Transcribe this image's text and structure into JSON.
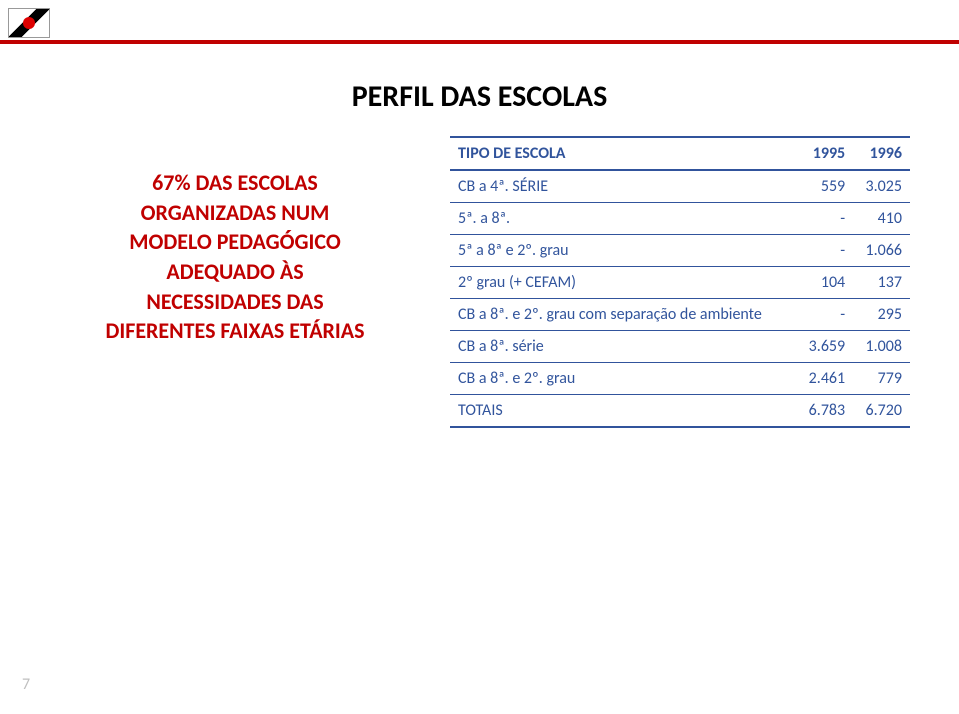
{
  "header": {
    "logo_name": "state-flag-logo"
  },
  "title": "PERFIL DAS ESCOLAS",
  "left_text": {
    "l1": "67% DAS ESCOLAS",
    "l2": "ORGANIZADAS NUM",
    "l3": "MODELO PEDAGÓGICO",
    "l4": "ADEQUADO ÀS",
    "l5": "NECESSIDADES DAS",
    "l6": "DIFERENTES FAIXAS ETÁRIAS"
  },
  "table": {
    "header": {
      "c0": "TIPO DE ESCOLA",
      "c1": "1995",
      "c2": "1996"
    },
    "rows": [
      {
        "c0": "CB a 4ª. SÉRIE",
        "c1": "559",
        "c2": "3.025"
      },
      {
        "c0": "5ª. a 8ª.",
        "c1": "-",
        "c2": "410"
      },
      {
        "c0": "5ª a 8ª e 2º. grau",
        "c1": "-",
        "c2": "1.066"
      },
      {
        "c0": "2º grau (+ CEFAM)",
        "c1": "104",
        "c2": "137"
      },
      {
        "c0": "CB a 8ª. e 2º. grau com separação de ambiente",
        "c1": "-",
        "c2": "295"
      },
      {
        "c0": "CB a 8ª. série",
        "c1": "3.659",
        "c2": "1.008"
      },
      {
        "c0": "CB a 8ª. e 2º. grau",
        "c1": "2.461",
        "c2": "779"
      },
      {
        "c0": "TOTAIS",
        "c1": "6.783",
        "c2": "6.720"
      }
    ],
    "colors": {
      "text": "#31549c",
      "border": "#31549c"
    }
  },
  "page_number": "7",
  "style": {
    "accent_red": "#c00000",
    "title_fontsize": 30,
    "left_fontsize": 22,
    "table_fontsize": 16,
    "background": "#ffffff"
  }
}
